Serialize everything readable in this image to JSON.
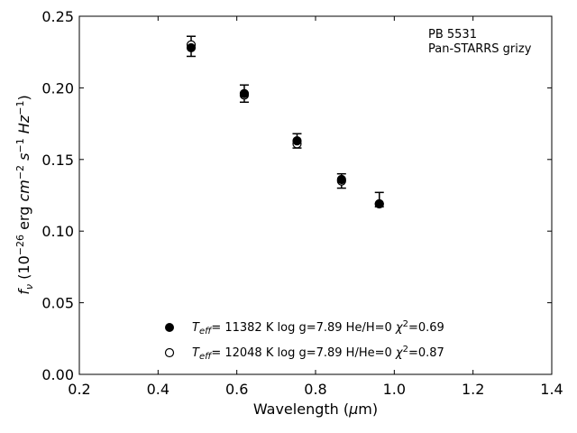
{
  "chart_data": {
    "type": "scatter",
    "xlabel": "Wavelength (μm)",
    "ylabel": "f_ν (10^−26 erg cm^−2 s^−1 Hz^−1)",
    "xlim": [
      0.2,
      1.4
    ],
    "ylim": [
      0.0,
      0.25
    ],
    "x_ticks": [
      0.2,
      0.4,
      0.6,
      0.8,
      1.0,
      1.2,
      1.4
    ],
    "y_ticks": [
      0.0,
      0.05,
      0.1,
      0.15,
      0.2,
      0.25
    ],
    "x_tick_labels": [
      "0.2",
      "0.4",
      "0.6",
      "0.8",
      "1.0",
      "1.2",
      "1.4"
    ],
    "y_tick_labels": [
      "0.00",
      "0.05",
      "0.10",
      "0.15",
      "0.20",
      "0.25"
    ],
    "grid": false,
    "annotation": [
      "PB 5531",
      "Pan-STARRS grizy"
    ],
    "observed": {
      "x": [
        0.484,
        0.619,
        0.753,
        0.866,
        0.962
      ],
      "y": [
        0.229,
        0.196,
        0.163,
        0.135,
        0.122
      ],
      "err": [
        0.007,
        0.006,
        0.005,
        0.005,
        0.005
      ]
    },
    "series": [
      {
        "marker": "filled-circle",
        "legend": "T_eff= 11382 K  log g=7.89  He/H=0  χ²=0.69",
        "x": [
          0.484,
          0.619,
          0.753,
          0.866,
          0.962
        ],
        "y": [
          0.228,
          0.196,
          0.163,
          0.136,
          0.119
        ]
      },
      {
        "marker": "open-circle",
        "legend": "T_eff= 12048 K  log g=7.89  H/He=0  χ²=0.87",
        "x": [
          0.484,
          0.619,
          0.753,
          0.866,
          0.962
        ],
        "y": [
          0.23,
          0.195,
          0.161,
          0.135,
          0.119
        ]
      }
    ],
    "legend_position": "bottom-center"
  }
}
